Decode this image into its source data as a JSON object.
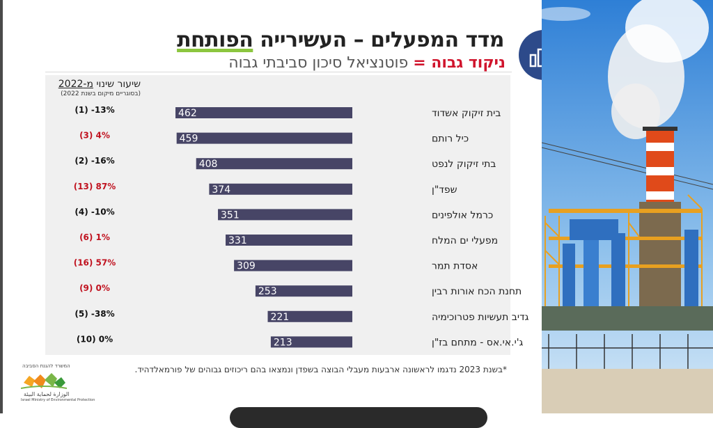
{
  "title": {
    "prefix": "מדד המפעלים – העשירייה",
    "accent": "הפותחת"
  },
  "subtitle": {
    "highlight": "ניקוד גבוה =",
    "rest": "פוטנציאל סיכון סביבתי גבוה"
  },
  "change_header": {
    "line1_prefix": "שיעור שינוי",
    "line1_underlined": "מ-2022",
    "line2": "(בסוגריים מיקום בשנת 2022)"
  },
  "footnote": "*בשנת 2023 נדגמו לראשונה ארבעות מעבלי הבוצה בשפדן ונמצאו בהם ריכוזים גבוהים של פורמאלדהיד.",
  "logo": {
    "top_text": "המשרד להגנת הסביבה",
    "bottom_text": "Israel Ministry of Environmental Protection",
    "hebrew_small": "الوزارة لحماية البيئة"
  },
  "colors": {
    "bar": "#474566",
    "increase": "#c0121f",
    "decrease": "#111111",
    "title_accent": "#8cc63f",
    "icon_bg": "#2d4a8a"
  },
  "icons": {
    "chart_icon": "bar-chart-icon"
  },
  "chart_data": {
    "type": "bar",
    "orientation": "horizontal",
    "categories": [
      "בית זיקוק אשדוד",
      "כיל רותם",
      "בתי זיקוק לנפט",
      "שפד\"ן",
      "כרמל אולפינים",
      "מפעלי ים המלח",
      "אסדת  תמר",
      "תחנת הכח אורות רבין",
      "גדיב תעשיות פטרוכימיה",
      "ג'י.אי.אס  - מתחם בז\"ן"
    ],
    "values": [
      462,
      459,
      408,
      374,
      351,
      331,
      309,
      253,
      221,
      213
    ],
    "value_labels": [
      "462",
      "459",
      "408",
      "374",
      "351",
      "331",
      "309",
      "253",
      "221",
      "213"
    ],
    "change_labels": [
      "(1) -13%",
      "(3) 4%",
      "(2) -16%",
      "(13) 87%",
      "(4) -10%",
      "(6) 1%",
      "(16) 57%",
      "(9) 0%",
      "(5) -38%",
      "(10) 0%"
    ],
    "change_direction": [
      "down",
      "up",
      "down",
      "up",
      "down",
      "up",
      "up",
      "up",
      "down",
      "neutral"
    ],
    "xlim": [
      0,
      462
    ]
  }
}
